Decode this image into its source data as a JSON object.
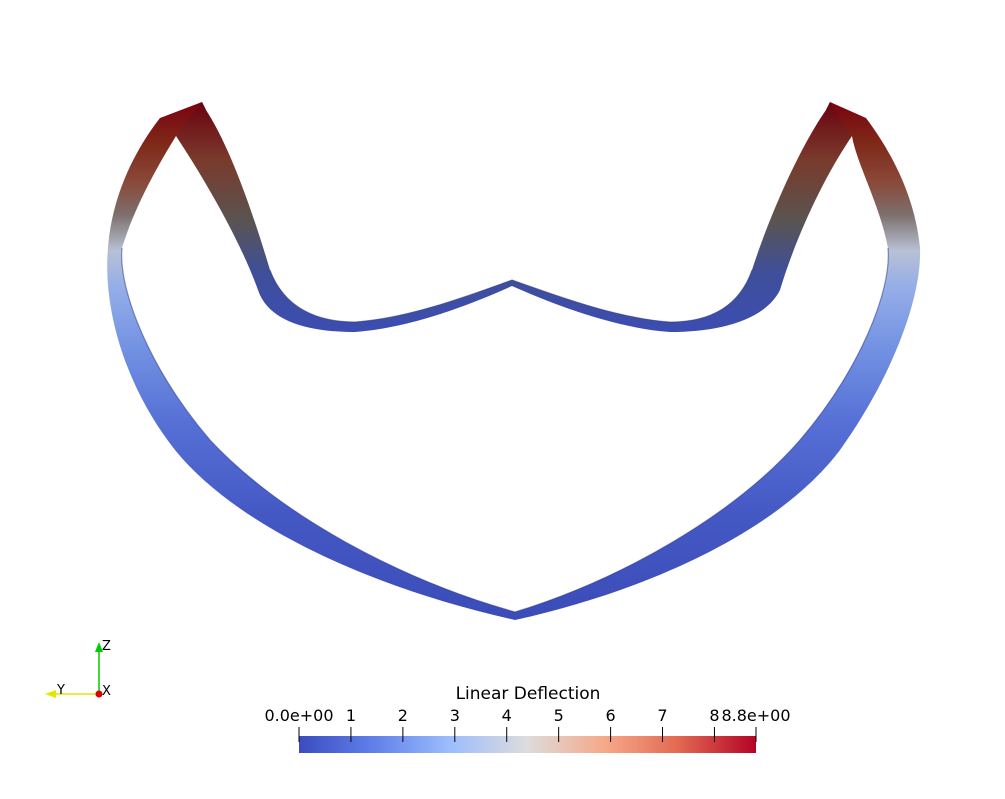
{
  "scalar_bar": {
    "title": "Linear Deflection",
    "min_label": "0.0e+00",
    "max_label": "8.8e+00",
    "range": [
      0,
      8.8
    ],
    "ticks": [
      {
        "value": 1,
        "label": "1"
      },
      {
        "value": 2,
        "label": "2"
      },
      {
        "value": 3,
        "label": "3"
      },
      {
        "value": 4,
        "label": "4"
      },
      {
        "value": 5,
        "label": "5"
      },
      {
        "value": 6,
        "label": "6"
      },
      {
        "value": 7,
        "label": "7"
      },
      {
        "value": 8,
        "label": "8"
      }
    ],
    "colormap": [
      "#3b4cc0",
      "#7396f5",
      "#b0cbfc",
      "#dddddd",
      "#f6bfa6",
      "#ea7b60",
      "#b40426"
    ]
  },
  "axes": {
    "z_label": "Z",
    "y_label": "Y",
    "x_label": "X",
    "z_color": "#00cc00",
    "y_color": "#e6e600",
    "x_color": "#dd0000"
  },
  "colors": {
    "background": "#ffffff",
    "low": "#3b4cc0",
    "high": "#7a0018"
  }
}
